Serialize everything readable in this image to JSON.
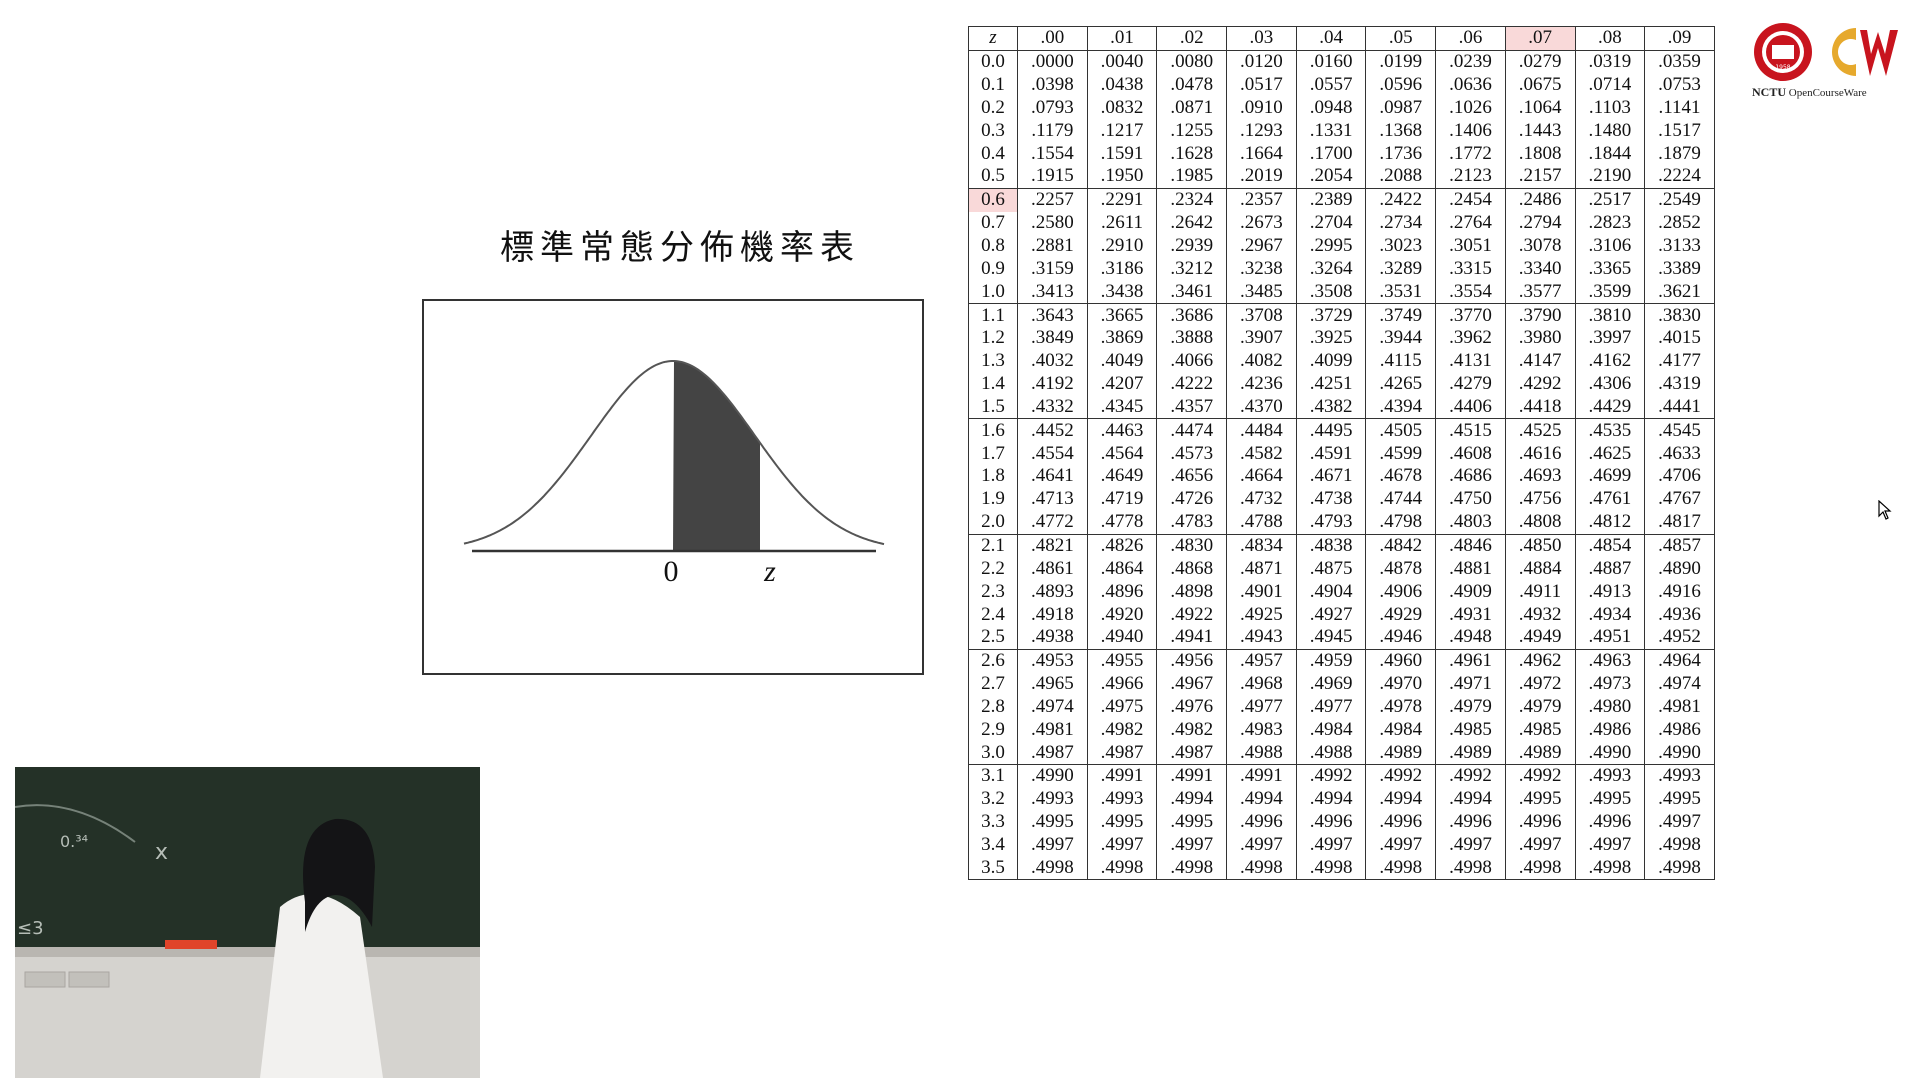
{
  "slide": {
    "title": "標準常態分佈機率表",
    "diagram": {
      "label_zero": "0",
      "label_z": "z"
    }
  },
  "table": {
    "headers": [
      "z",
      ".00",
      ".01",
      ".02",
      ".03",
      ".04",
      ".05",
      ".06",
      ".07",
      ".08",
      ".09"
    ],
    "highlight_row": "0.6",
    "highlight_col": ".07",
    "rows": [
      [
        "0.0",
        ".0000",
        ".0040",
        ".0080",
        ".0120",
        ".0160",
        ".0199",
        ".0239",
        ".0279",
        ".0319",
        ".0359"
      ],
      [
        "0.1",
        ".0398",
        ".0438",
        ".0478",
        ".0517",
        ".0557",
        ".0596",
        ".0636",
        ".0675",
        ".0714",
        ".0753"
      ],
      [
        "0.2",
        ".0793",
        ".0832",
        ".0871",
        ".0910",
        ".0948",
        ".0987",
        ".1026",
        ".1064",
        ".1103",
        ".1141"
      ],
      [
        "0.3",
        ".1179",
        ".1217",
        ".1255",
        ".1293",
        ".1331",
        ".1368",
        ".1406",
        ".1443",
        ".1480",
        ".1517"
      ],
      [
        "0.4",
        ".1554",
        ".1591",
        ".1628",
        ".1664",
        ".1700",
        ".1736",
        ".1772",
        ".1808",
        ".1844",
        ".1879"
      ],
      [
        "0.5",
        ".1915",
        ".1950",
        ".1985",
        ".2019",
        ".2054",
        ".2088",
        ".2123",
        ".2157",
        ".2190",
        ".2224"
      ],
      [
        "0.6",
        ".2257",
        ".2291",
        ".2324",
        ".2357",
        ".2389",
        ".2422",
        ".2454",
        ".2486",
        ".2517",
        ".2549"
      ],
      [
        "0.7",
        ".2580",
        ".2611",
        ".2642",
        ".2673",
        ".2704",
        ".2734",
        ".2764",
        ".2794",
        ".2823",
        ".2852"
      ],
      [
        "0.8",
        ".2881",
        ".2910",
        ".2939",
        ".2967",
        ".2995",
        ".3023",
        ".3051",
        ".3078",
        ".3106",
        ".3133"
      ],
      [
        "0.9",
        ".3159",
        ".3186",
        ".3212",
        ".3238",
        ".3264",
        ".3289",
        ".3315",
        ".3340",
        ".3365",
        ".3389"
      ],
      [
        "1.0",
        ".3413",
        ".3438",
        ".3461",
        ".3485",
        ".3508",
        ".3531",
        ".3554",
        ".3577",
        ".3599",
        ".3621"
      ],
      [
        "1.1",
        ".3643",
        ".3665",
        ".3686",
        ".3708",
        ".3729",
        ".3749",
        ".3770",
        ".3790",
        ".3810",
        ".3830"
      ],
      [
        "1.2",
        ".3849",
        ".3869",
        ".3888",
        ".3907",
        ".3925",
        ".3944",
        ".3962",
        ".3980",
        ".3997",
        ".4015"
      ],
      [
        "1.3",
        ".4032",
        ".4049",
        ".4066",
        ".4082",
        ".4099",
        ".4115",
        ".4131",
        ".4147",
        ".4162",
        ".4177"
      ],
      [
        "1.4",
        ".4192",
        ".4207",
        ".4222",
        ".4236",
        ".4251",
        ".4265",
        ".4279",
        ".4292",
        ".4306",
        ".4319"
      ],
      [
        "1.5",
        ".4332",
        ".4345",
        ".4357",
        ".4370",
        ".4382",
        ".4394",
        ".4406",
        ".4418",
        ".4429",
        ".4441"
      ],
      [
        "1.6",
        ".4452",
        ".4463",
        ".4474",
        ".4484",
        ".4495",
        ".4505",
        ".4515",
        ".4525",
        ".4535",
        ".4545"
      ],
      [
        "1.7",
        ".4554",
        ".4564",
        ".4573",
        ".4582",
        ".4591",
        ".4599",
        ".4608",
        ".4616",
        ".4625",
        ".4633"
      ],
      [
        "1.8",
        ".4641",
        ".4649",
        ".4656",
        ".4664",
        ".4671",
        ".4678",
        ".4686",
        ".4693",
        ".4699",
        ".4706"
      ],
      [
        "1.9",
        ".4713",
        ".4719",
        ".4726",
        ".4732",
        ".4738",
        ".4744",
        ".4750",
        ".4756",
        ".4761",
        ".4767"
      ],
      [
        "2.0",
        ".4772",
        ".4778",
        ".4783",
        ".4788",
        ".4793",
        ".4798",
        ".4803",
        ".4808",
        ".4812",
        ".4817"
      ],
      [
        "2.1",
        ".4821",
        ".4826",
        ".4830",
        ".4834",
        ".4838",
        ".4842",
        ".4846",
        ".4850",
        ".4854",
        ".4857"
      ],
      [
        "2.2",
        ".4861",
        ".4864",
        ".4868",
        ".4871",
        ".4875",
        ".4878",
        ".4881",
        ".4884",
        ".4887",
        ".4890"
      ],
      [
        "2.3",
        ".4893",
        ".4896",
        ".4898",
        ".4901",
        ".4904",
        ".4906",
        ".4909",
        ".4911",
        ".4913",
        ".4916"
      ],
      [
        "2.4",
        ".4918",
        ".4920",
        ".4922",
        ".4925",
        ".4927",
        ".4929",
        ".4931",
        ".4932",
        ".4934",
        ".4936"
      ],
      [
        "2.5",
        ".4938",
        ".4940",
        ".4941",
        ".4943",
        ".4945",
        ".4946",
        ".4948",
        ".4949",
        ".4951",
        ".4952"
      ],
      [
        "2.6",
        ".4953",
        ".4955",
        ".4956",
        ".4957",
        ".4959",
        ".4960",
        ".4961",
        ".4962",
        ".4963",
        ".4964"
      ],
      [
        "2.7",
        ".4965",
        ".4966",
        ".4967",
        ".4968",
        ".4969",
        ".4970",
        ".4971",
        ".4972",
        ".4973",
        ".4974"
      ],
      [
        "2.8",
        ".4974",
        ".4975",
        ".4976",
        ".4977",
        ".4977",
        ".4978",
        ".4979",
        ".4979",
        ".4980",
        ".4981"
      ],
      [
        "2.9",
        ".4981",
        ".4982",
        ".4982",
        ".4983",
        ".4984",
        ".4984",
        ".4985",
        ".4985",
        ".4986",
        ".4986"
      ],
      [
        "3.0",
        ".4987",
        ".4987",
        ".4987",
        ".4988",
        ".4988",
        ".4989",
        ".4989",
        ".4989",
        ".4990",
        ".4990"
      ],
      [
        "3.1",
        ".4990",
        ".4991",
        ".4991",
        ".4991",
        ".4992",
        ".4992",
        ".4992",
        ".4992",
        ".4993",
        ".4993"
      ],
      [
        "3.2",
        ".4993",
        ".4993",
        ".4994",
        ".4994",
        ".4994",
        ".4994",
        ".4994",
        ".4995",
        ".4995",
        ".4995"
      ],
      [
        "3.3",
        ".4995",
        ".4995",
        ".4995",
        ".4996",
        ".4996",
        ".4996",
        ".4996",
        ".4996",
        ".4996",
        ".4997"
      ],
      [
        "3.4",
        ".4997",
        ".4997",
        ".4997",
        ".4997",
        ".4997",
        ".4997",
        ".4997",
        ".4997",
        ".4997",
        ".4998"
      ],
      [
        "3.5",
        ".4998",
        ".4998",
        ".4998",
        ".4998",
        ".4998",
        ".4998",
        ".4998",
        ".4998",
        ".4998",
        ".4998"
      ]
    ]
  },
  "logo": {
    "org": "NCTU",
    "brand": "OpenCourseWare",
    "seal_year": "1958"
  },
  "video": {
    "board_marks": [
      "0.³⁴",
      "x",
      "≤3"
    ]
  },
  "colors": {
    "highlight": "#f9d9d9",
    "logo_red": "#c8141e",
    "logo_gold": "#e6a92d",
    "shade": "#444444",
    "chalkboard": "#233127"
  }
}
